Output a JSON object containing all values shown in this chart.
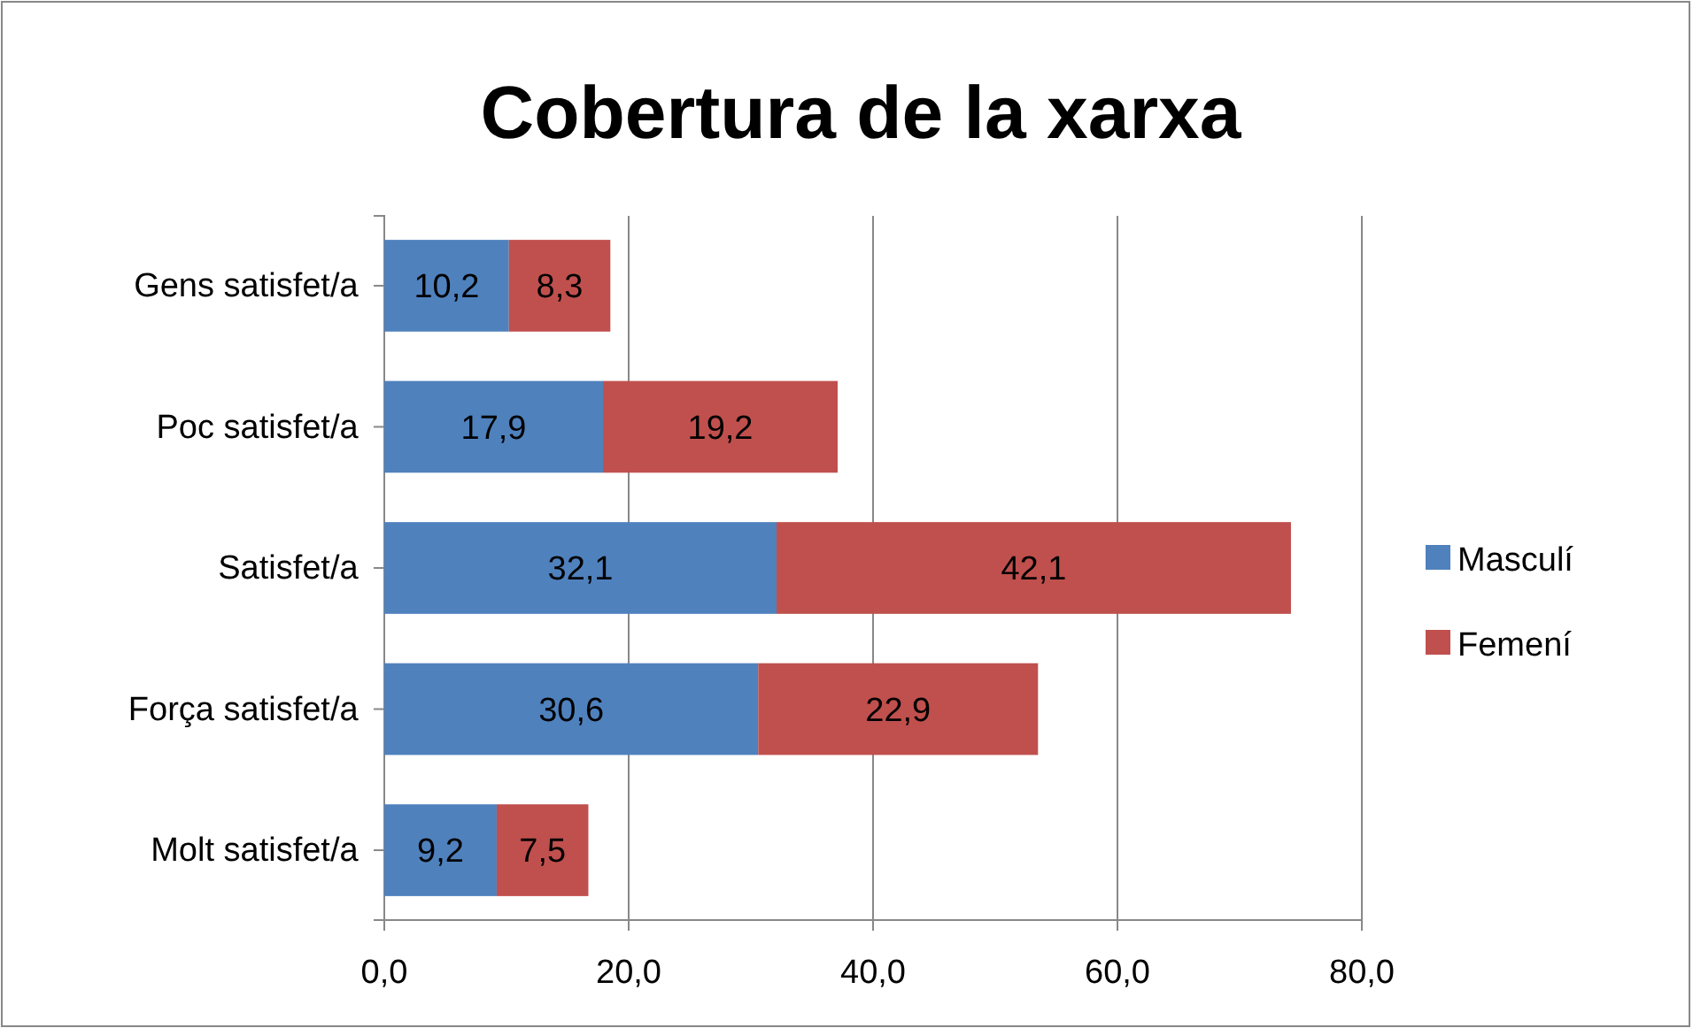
{
  "chart_data": {
    "type": "bar",
    "title": "Cobertura de la xarxa",
    "orientation": "horizontal",
    "stacked": true,
    "categories": [
      "Gens satisfet/a",
      "Poc satisfet/a",
      "Satisfet/a",
      "Força satisfet/a",
      "Molt satisfet/a"
    ],
    "series": [
      {
        "name": "Masculí",
        "color": "#4f81bd",
        "values": [
          10.2,
          17.9,
          32.1,
          30.6,
          9.2
        ],
        "value_labels": [
          "10,2",
          "17,9",
          "32,1",
          "30,6",
          "9,2"
        ]
      },
      {
        "name": "Femení",
        "color": "#c0504d",
        "values": [
          8.3,
          19.2,
          42.1,
          22.9,
          7.5
        ],
        "value_labels": [
          "8,3",
          "19,2",
          "42,1",
          "22,9",
          "7,5"
        ]
      }
    ],
    "xlim": [
      0,
      80
    ],
    "xticks": [
      {
        "value": 0,
        "label": "0,0"
      },
      {
        "value": 20,
        "label": "20,0"
      },
      {
        "value": 40,
        "label": "40,0"
      },
      {
        "value": 60,
        "label": "60,0"
      },
      {
        "value": 80,
        "label": "80,0"
      }
    ],
    "grid": "x",
    "legend": "right"
  }
}
